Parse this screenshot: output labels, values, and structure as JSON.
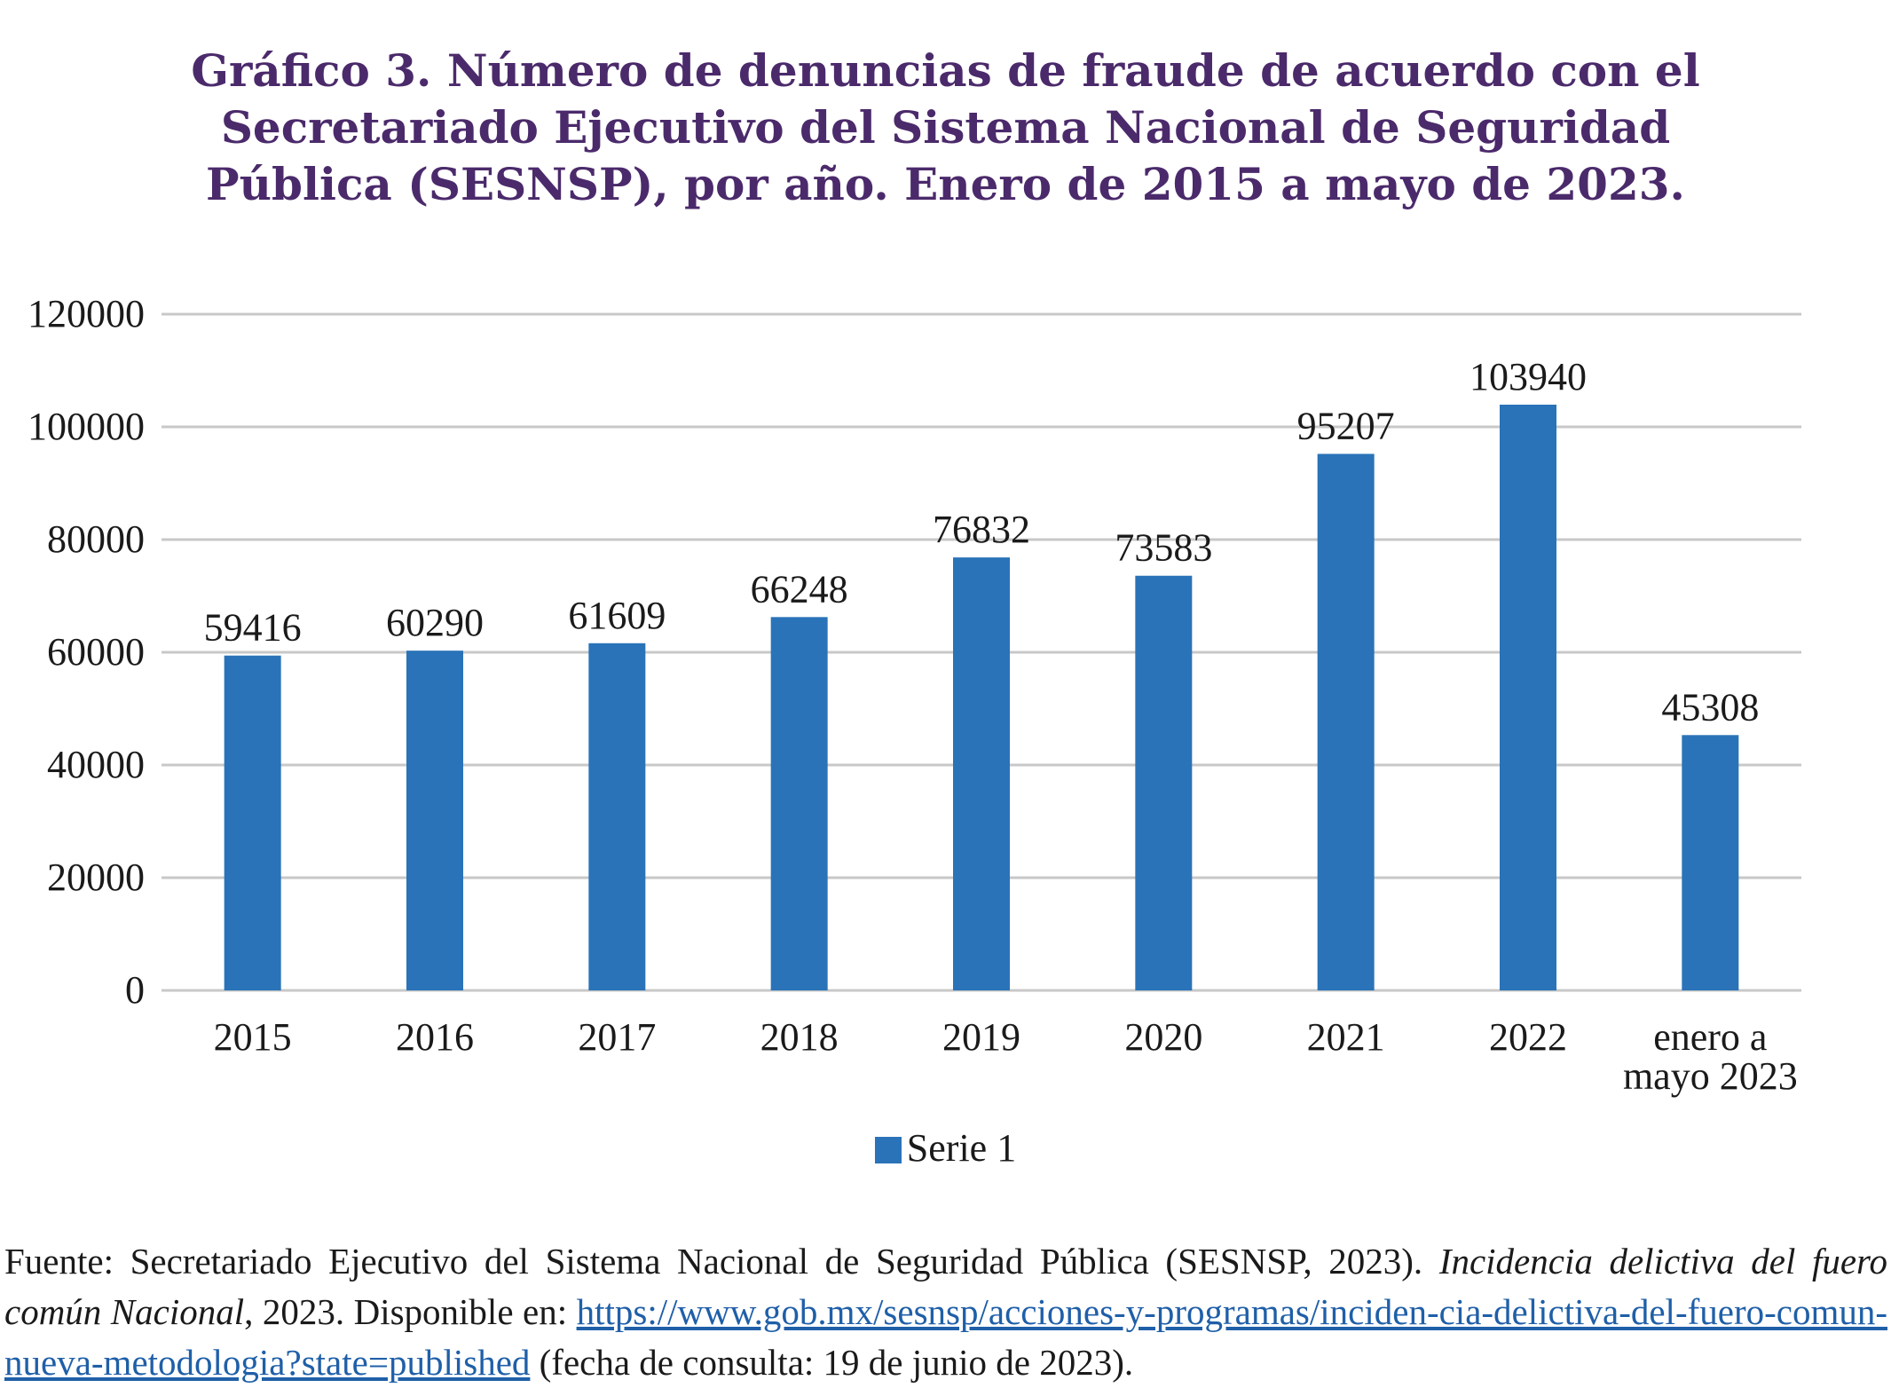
{
  "title_lines": [
    "Gráfico 3. Número de denuncias de fraude de acuerdo con el",
    "Secretariado Ejecutivo del Sistema Nacional de Seguridad",
    "Pública (SESNSP), por año. Enero de 2015 a mayo de 2023."
  ],
  "colors": {
    "bar": "#2a73b8",
    "grid": "#c8c8c8",
    "title": "#4b2a6b",
    "text": "#1a1a1a",
    "link": "#1f5fa8"
  },
  "chart_data": {
    "type": "bar",
    "title": "Gráfico 3. Número de denuncias de fraude de acuerdo con el Secretariado Ejecutivo del Sistema Nacional de Seguridad Pública (SESNSP), por año. Enero de 2015 a mayo de 2023.",
    "categories": [
      "2015",
      "2016",
      "2017",
      "2018",
      "2019",
      "2020",
      "2021",
      "2022",
      "enero a mayo 2023"
    ],
    "category_lines": [
      [
        "2015"
      ],
      [
        "2016"
      ],
      [
        "2017"
      ],
      [
        "2018"
      ],
      [
        "2019"
      ],
      [
        "2020"
      ],
      [
        "2021"
      ],
      [
        "2022"
      ],
      [
        "enero a",
        "mayo 2023"
      ]
    ],
    "series": [
      {
        "name": "Serie 1",
        "values": [
          59416,
          60290,
          61609,
          66248,
          76832,
          73583,
          95207,
          103940,
          45308
        ]
      }
    ],
    "y_ticks": [
      "0",
      "20000",
      "40000",
      "60000",
      "80000",
      "100000",
      "120000"
    ],
    "ylim": [
      0,
      120000
    ],
    "xlabel": "",
    "ylabel": "",
    "grid": true,
    "legend_position": "bottom"
  },
  "legend": {
    "label": "Serie 1"
  },
  "source": {
    "prefix": "Fuente: Secretariado Ejecutivo del Sistema Nacional de Seguridad Pública (SESNSP, 2023). ",
    "italic1": "Incidencia delictiva del fuero común Nacional",
    "mid": ", 2023. Disponible en: ",
    "link": "https://www.gob.mx/sesnsp/acciones-y-programas/inciden-cia-delictiva-del-fuero-comun-nueva-metodologia?state=published",
    "suffix": " (fecha de consulta: 19 de junio de 2023)."
  }
}
